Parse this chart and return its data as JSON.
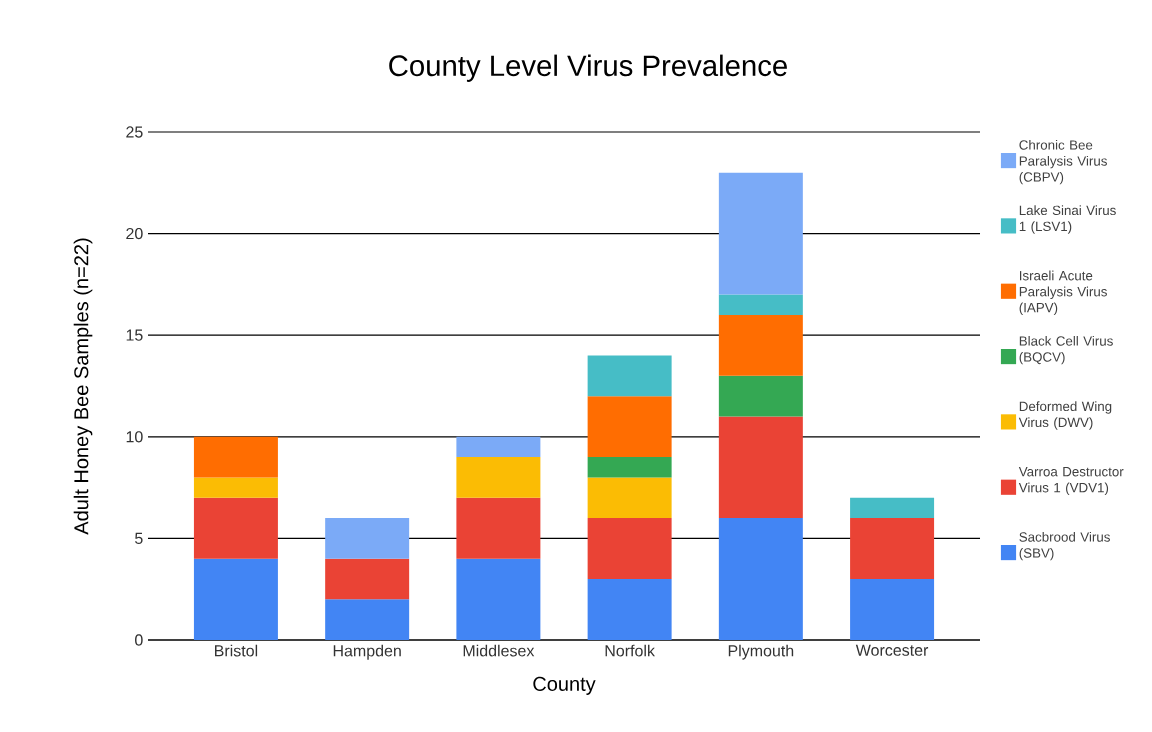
{
  "chart_data": {
    "type": "bar",
    "title": "County Level Virus Prevalence",
    "xlabel": "County",
    "ylabel": "Adult Honey Bee Samples (n=22)",
    "categories": [
      "Bristol",
      "Hampden",
      "Middlesex",
      "Norfolk",
      "Plymouth",
      "Worcester"
    ],
    "stacked": true,
    "ylim": [
      0,
      25
    ],
    "yticks": [
      0,
      5,
      10,
      15,
      20,
      25
    ],
    "grid": "y",
    "legend": "right",
    "series": [
      {
        "name": "Sacbrood Virus (SBV)",
        "color": "#4285f4",
        "values": [
          4,
          2,
          4,
          3,
          6,
          3
        ]
      },
      {
        "name": "Varroa Destructor Virus 1 (VDV1)",
        "color": "#ea4335",
        "values": [
          3,
          2,
          3,
          3,
          5,
          3
        ]
      },
      {
        "name": "Deformed Wing Virus (DWV)",
        "color": "#fbbc04",
        "values": [
          1,
          null,
          2,
          2,
          null,
          null
        ]
      },
      {
        "name": "Black Cell Virus (BQCV)",
        "color": "#34a853",
        "values": [
          null,
          null,
          null,
          1,
          2,
          null
        ]
      },
      {
        "name": "Israeli Acute Paralysis Virus (IAPV)",
        "color": "#ff6d01",
        "values": [
          2,
          null,
          null,
          3,
          3,
          null
        ]
      },
      {
        "name": "Lake Sinai Virus 1 (LSV1)",
        "color": "#46bdc6",
        "values": [
          null,
          null,
          null,
          2,
          1,
          1
        ]
      },
      {
        "name": "Chronic Bee Paralysis Virus (CBPV)",
        "color": "#7baaf7",
        "values": [
          null,
          2,
          1,
          null,
          6,
          null
        ]
      }
    ]
  }
}
